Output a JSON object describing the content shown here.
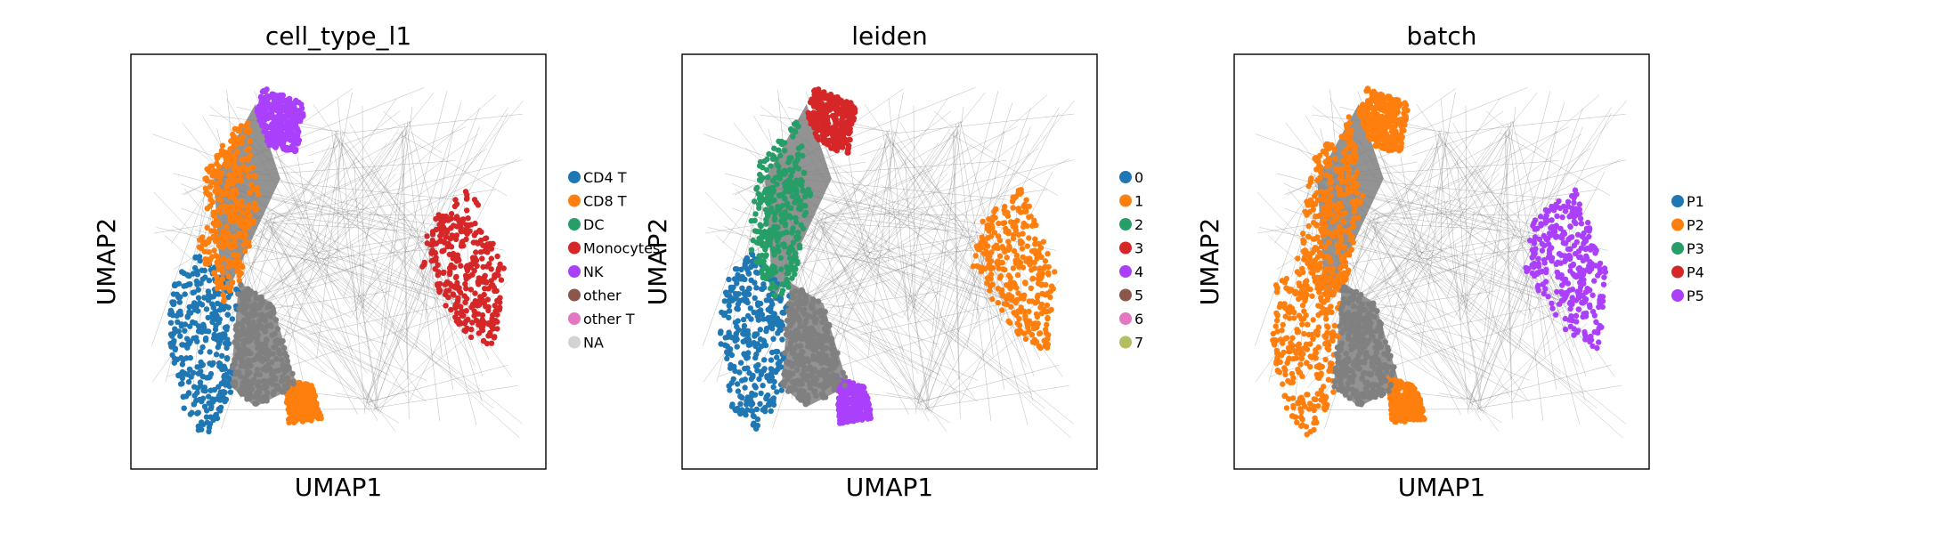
{
  "chart_data": [
    {
      "type": "scatter",
      "title": "cell_type_l1",
      "xlabel": "UMAP1",
      "ylabel": "UMAP2",
      "grid": false,
      "legend_placement": "right",
      "series": [
        {
          "name": "CD4 T",
          "color": "#1f77b4"
        },
        {
          "name": "CD8 T",
          "color": "#ff7f0e"
        },
        {
          "name": "DC",
          "color": "#279e68"
        },
        {
          "name": "Monocytes",
          "color": "#d62728"
        },
        {
          "name": "NK",
          "color": "#aa40fc"
        },
        {
          "name": "other",
          "color": "#8c564b"
        },
        {
          "name": "other T",
          "color": "#e377c2"
        },
        {
          "name": "NA",
          "color": "#d3d3d3"
        }
      ]
    },
    {
      "type": "scatter",
      "title": "leiden",
      "xlabel": "UMAP1",
      "ylabel": "UMAP2",
      "grid": false,
      "legend_placement": "right",
      "series": [
        {
          "name": "0",
          "color": "#1f77b4"
        },
        {
          "name": "1",
          "color": "#ff7f0e"
        },
        {
          "name": "2",
          "color": "#279e68"
        },
        {
          "name": "3",
          "color": "#d62728"
        },
        {
          "name": "4",
          "color": "#aa40fc"
        },
        {
          "name": "5",
          "color": "#8c564b"
        },
        {
          "name": "6",
          "color": "#e377c2"
        },
        {
          "name": "7",
          "color": "#b5bd61"
        }
      ]
    },
    {
      "type": "scatter",
      "title": "batch",
      "xlabel": "UMAP1",
      "ylabel": "UMAP2",
      "grid": false,
      "legend_placement": "right",
      "series": [
        {
          "name": "P1",
          "color": "#1f77b4"
        },
        {
          "name": "P2",
          "color": "#ff7f0e"
        },
        {
          "name": "P3",
          "color": "#279e68"
        },
        {
          "name": "P4",
          "color": "#d62728"
        },
        {
          "name": "P5",
          "color": "#aa40fc"
        }
      ]
    }
  ],
  "colors": {
    "edge": "#808080",
    "frame": "#000000",
    "background": "#ffffff"
  }
}
